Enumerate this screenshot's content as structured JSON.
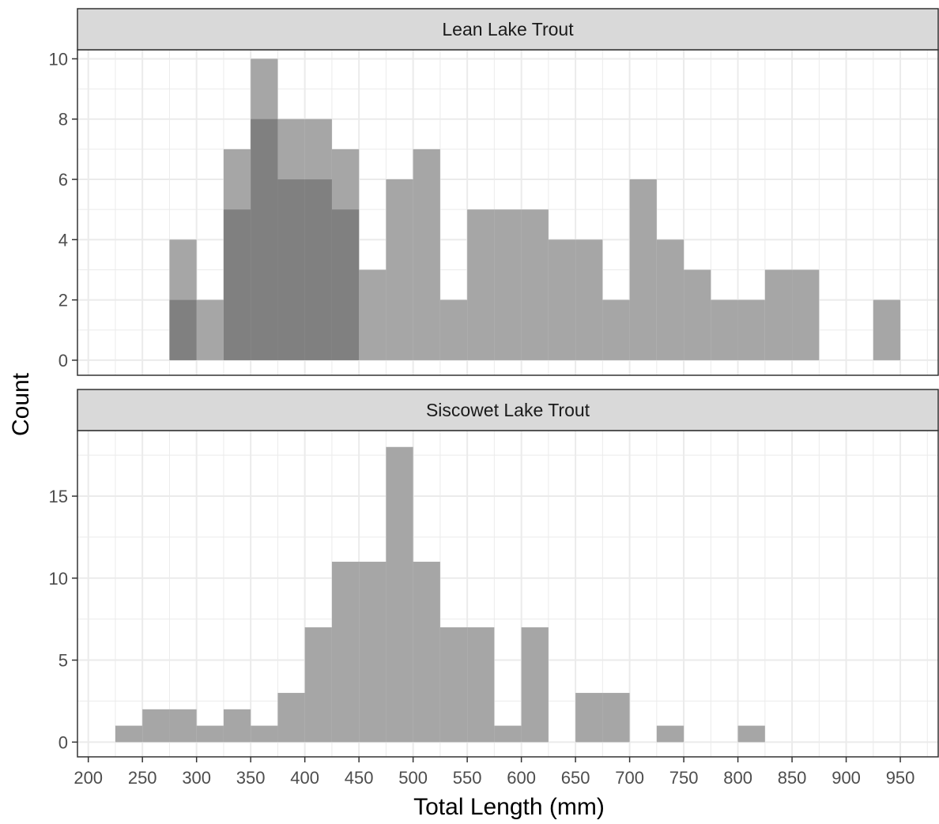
{
  "chart_data": {
    "type": "bar",
    "xlabel": "Total Length (mm)",
    "ylabel": "Count",
    "xlim": [
      190,
      985
    ],
    "x_ticks": [
      200,
      250,
      300,
      350,
      400,
      450,
      500,
      550,
      600,
      650,
      700,
      750,
      800,
      850,
      900,
      950
    ],
    "bin_width": 25,
    "grid": true,
    "colors": {
      "bar": "#a6a6a6",
      "bar_overlap": "#808080",
      "strip": "#d9d9d9",
      "grid_major": "#ebebeb"
    },
    "panels": [
      {
        "strip_label": "Lean Lake Trout",
        "ylim": [
          -0.5,
          10.3
        ],
        "y_ticks": [
          0,
          2,
          4,
          6,
          8,
          10
        ],
        "series": [
          {
            "bin_starts": [
              275,
              300,
              325,
              350,
              375,
              400,
              425,
              450,
              475,
              500,
              525,
              550,
              575,
              600,
              625,
              650,
              675,
              700,
              725,
              750,
              775,
              800,
              825,
              850,
              875,
              900,
              925
            ],
            "values": [
              4,
              2,
              7,
              10,
              8,
              8,
              7,
              3,
              6,
              7,
              2,
              5,
              5,
              5,
              4,
              4,
              2,
              6,
              4,
              3,
              2,
              2,
              3,
              3,
              0,
              0,
              2
            ]
          },
          {
            "bin_starts": [
              275,
              300,
              325,
              350,
              375,
              400,
              425
            ],
            "values": [
              2,
              0,
              5,
              8,
              6,
              6,
              5
            ]
          }
        ]
      },
      {
        "strip_label": "Siscowet Lake Trout",
        "ylim": [
          -0.9,
          19.0
        ],
        "y_ticks": [
          0,
          5,
          10,
          15
        ],
        "series": [
          {
            "bin_starts": [
              225,
              250,
              275,
              300,
              325,
              350,
              375,
              400,
              425,
              450,
              475,
              500,
              525,
              550,
              575,
              600,
              625,
              650,
              675,
              700,
              725,
              750,
              775,
              800
            ],
            "values": [
              1,
              2,
              2,
              1,
              2,
              1,
              3,
              7,
              11,
              11,
              18,
              11,
              7,
              7,
              1,
              7,
              0,
              3,
              3,
              0,
              1,
              0,
              0,
              1
            ]
          }
        ]
      }
    ]
  }
}
